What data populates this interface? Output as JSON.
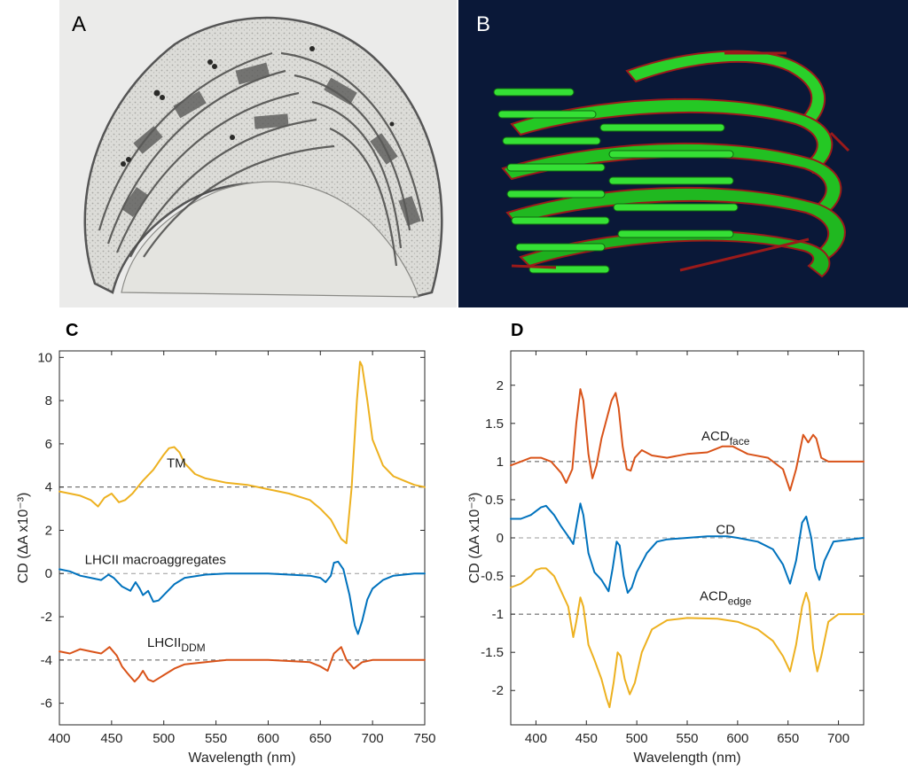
{
  "panels": {
    "a": {
      "letter": "A"
    },
    "b": {
      "letter": "B"
    },
    "c": {
      "letter": "C"
    },
    "d": {
      "letter": "D"
    }
  },
  "colors": {
    "orange": "#d95319",
    "blue": "#0072bd",
    "yellow": "#edb120",
    "dashed": "#555555",
    "thylakoid_green": "#28d428",
    "membrane_red": "#8b1a1a",
    "navy": "#0a1838"
  },
  "chart_data": [
    {
      "id": "C",
      "type": "line",
      "xlabel": "Wavelength (nm)",
      "ylabel": "CD (ΔA x10⁻³)",
      "xlim": [
        400,
        750
      ],
      "ylim": [
        -7,
        10.3
      ],
      "xticks": [
        400,
        450,
        500,
        550,
        600,
        650,
        700,
        750
      ],
      "yticks": [
        -6,
        -4,
        -2,
        0,
        2,
        4,
        6,
        8,
        10
      ],
      "grid": false,
      "baselines": [
        4,
        0,
        -4
      ],
      "annotations": [
        {
          "text": "TM",
          "x": 512,
          "y": 4.9
        },
        {
          "text": "LHCII macroaggregates",
          "x": 492,
          "y": 0.45
        },
        {
          "text": "LHCII",
          "sub": "DDM",
          "x": 512,
          "y": -3.4
        }
      ],
      "series": [
        {
          "color": "yellow",
          "x": [
            400,
            410,
            420,
            430,
            437,
            443,
            450,
            457,
            463,
            470,
            480,
            490,
            500,
            505,
            510,
            515,
            520,
            530,
            540,
            560,
            580,
            600,
            620,
            640,
            650,
            660,
            670,
            675,
            680,
            685,
            688,
            690,
            695,
            700,
            710,
            720,
            730,
            740,
            750
          ],
          "y": [
            3.8,
            3.7,
            3.6,
            3.4,
            3.1,
            3.5,
            3.7,
            3.3,
            3.4,
            3.7,
            4.3,
            4.8,
            5.5,
            5.8,
            5.85,
            5.6,
            5.1,
            4.6,
            4.4,
            4.2,
            4.1,
            3.9,
            3.7,
            3.4,
            3.0,
            2.5,
            1.6,
            1.4,
            4.0,
            8.0,
            9.8,
            9.6,
            8.0,
            6.2,
            5.0,
            4.5,
            4.3,
            4.1,
            4.0
          ]
        },
        {
          "color": "blue",
          "x": [
            400,
            410,
            420,
            430,
            440,
            447,
            452,
            460,
            468,
            473,
            477,
            480,
            485,
            490,
            495,
            500,
            510,
            520,
            540,
            560,
            600,
            640,
            650,
            655,
            660,
            663,
            667,
            672,
            678,
            683,
            686,
            690,
            695,
            700,
            710,
            720,
            730,
            740,
            750
          ],
          "y": [
            0.2,
            0.1,
            -0.1,
            -0.2,
            -0.3,
            -0.05,
            -0.2,
            -0.6,
            -0.8,
            -0.4,
            -0.7,
            -1.0,
            -0.8,
            -1.3,
            -1.25,
            -1.0,
            -0.5,
            -0.2,
            -0.05,
            0.0,
            0.0,
            -0.1,
            -0.2,
            -0.4,
            -0.1,
            0.5,
            0.55,
            0.2,
            -1.0,
            -2.4,
            -2.8,
            -2.2,
            -1.2,
            -0.7,
            -0.3,
            -0.1,
            -0.05,
            0.0,
            0.0
          ]
        },
        {
          "color": "orange",
          "x": [
            400,
            410,
            420,
            430,
            440,
            448,
            455,
            460,
            465,
            472,
            476,
            480,
            485,
            490,
            500,
            510,
            520,
            540,
            560,
            600,
            640,
            650,
            657,
            663,
            670,
            675,
            682,
            690,
            700,
            710,
            720,
            730,
            750
          ],
          "y": [
            -3.6,
            -3.7,
            -3.5,
            -3.6,
            -3.7,
            -3.4,
            -3.8,
            -4.3,
            -4.6,
            -5.0,
            -4.8,
            -4.5,
            -4.9,
            -5.0,
            -4.7,
            -4.4,
            -4.2,
            -4.1,
            -4.0,
            -4.0,
            -4.1,
            -4.3,
            -4.5,
            -3.7,
            -3.4,
            -4.0,
            -4.4,
            -4.1,
            -4.0,
            -4.0,
            -4.0,
            -4.0,
            -4.0
          ]
        }
      ]
    },
    {
      "id": "D",
      "type": "line",
      "xlabel": "Wavelength (nm)",
      "ylabel": "CD (ΔA x10⁻³)",
      "xlim": [
        375,
        725
      ],
      "ylim": [
        -2.45,
        2.45
      ],
      "xticks": [
        400,
        450,
        500,
        550,
        600,
        650,
        700
      ],
      "yticks": [
        -2,
        -1.5,
        -1,
        -0.5,
        0,
        0.5,
        1,
        1.5,
        2
      ],
      "grid": false,
      "baselines": [
        1,
        0,
        -1
      ],
      "annotations": [
        {
          "text": "ACD",
          "sub": "face",
          "x": 588,
          "y": 1.28
        },
        {
          "text": "CD",
          "x": 588,
          "y": 0.05
        },
        {
          "text": "ACD",
          "sub": "edge",
          "x": 588,
          "y": -0.82
        }
      ],
      "series": [
        {
          "color": "orange",
          "x": [
            375,
            385,
            395,
            405,
            415,
            425,
            430,
            436,
            440,
            444,
            447,
            452,
            456,
            460,
            465,
            470,
            475,
            479,
            482,
            486,
            490,
            494,
            498,
            505,
            515,
            530,
            550,
            570,
            585,
            595,
            610,
            630,
            645,
            652,
            658,
            665,
            670,
            675,
            678,
            683,
            690,
            700,
            725
          ],
          "y": [
            0.95,
            1.0,
            1.05,
            1.05,
            1.0,
            0.85,
            0.72,
            0.9,
            1.5,
            1.95,
            1.8,
            1.1,
            0.78,
            0.95,
            1.3,
            1.55,
            1.8,
            1.9,
            1.7,
            1.2,
            0.9,
            0.88,
            1.05,
            1.15,
            1.08,
            1.05,
            1.1,
            1.12,
            1.2,
            1.2,
            1.1,
            1.05,
            0.9,
            0.62,
            0.9,
            1.35,
            1.25,
            1.35,
            1.3,
            1.05,
            1.0,
            1.0,
            1.0
          ]
        },
        {
          "color": "blue",
          "x": [
            375,
            385,
            395,
            405,
            410,
            418,
            425,
            432,
            437,
            440,
            444,
            447,
            452,
            458,
            465,
            472,
            476,
            480,
            483,
            487,
            491,
            495,
            500,
            510,
            520,
            530,
            550,
            570,
            590,
            600,
            620,
            635,
            645,
            652,
            658,
            664,
            668,
            673,
            677,
            681,
            686,
            695,
            725
          ],
          "y": [
            0.25,
            0.25,
            0.3,
            0.4,
            0.42,
            0.3,
            0.15,
            0.02,
            -0.08,
            0.15,
            0.45,
            0.3,
            -0.2,
            -0.45,
            -0.55,
            -0.7,
            -0.4,
            -0.05,
            -0.1,
            -0.5,
            -0.72,
            -0.65,
            -0.45,
            -0.2,
            -0.05,
            -0.02,
            0.0,
            0.02,
            0.02,
            0.0,
            -0.05,
            -0.15,
            -0.35,
            -0.6,
            -0.3,
            0.2,
            0.28,
            0.0,
            -0.4,
            -0.55,
            -0.3,
            -0.05,
            0.0
          ]
        },
        {
          "color": "yellow",
          "x": [
            375,
            385,
            395,
            400,
            405,
            410,
            418,
            425,
            432,
            437,
            440,
            444,
            447,
            452,
            458,
            465,
            470,
            473,
            477,
            481,
            484,
            488,
            493,
            498,
            505,
            515,
            530,
            550,
            580,
            600,
            620,
            635,
            645,
            652,
            658,
            664,
            668,
            671,
            675,
            679,
            683,
            690,
            700,
            725
          ],
          "y": [
            -0.65,
            -0.6,
            -0.5,
            -0.42,
            -0.4,
            -0.4,
            -0.5,
            -0.7,
            -0.9,
            -1.3,
            -1.1,
            -0.78,
            -0.9,
            -1.4,
            -1.6,
            -1.85,
            -2.1,
            -2.22,
            -1.9,
            -1.5,
            -1.55,
            -1.85,
            -2.05,
            -1.9,
            -1.5,
            -1.2,
            -1.08,
            -1.05,
            -1.06,
            -1.1,
            -1.2,
            -1.35,
            -1.55,
            -1.75,
            -1.4,
            -0.9,
            -0.72,
            -0.85,
            -1.45,
            -1.75,
            -1.55,
            -1.1,
            -1.0,
            -1.0
          ]
        }
      ]
    }
  ]
}
